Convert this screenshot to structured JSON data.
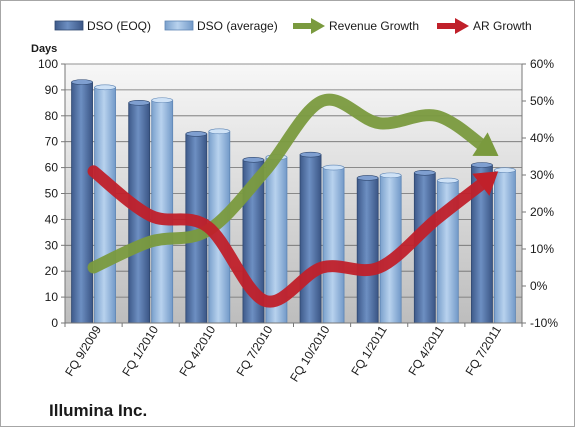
{
  "chart_data": {
    "type": "bar",
    "title": "",
    "subtitle": "Illumina Inc.",
    "ylabel": "Days",
    "ylim": [
      0,
      100
    ],
    "y_ticks": [
      "0",
      "10",
      "20",
      "30",
      "40",
      "50",
      "60",
      "70",
      "80",
      "90",
      "100"
    ],
    "y2lim": [
      -10,
      60
    ],
    "y2_ticks": [
      "-10%",
      "0%",
      "10%",
      "20%",
      "30%",
      "40%",
      "50%",
      "60%"
    ],
    "categories": [
      "FQ 9/2009",
      "FQ 1/2010",
      "FQ 4/2010",
      "FQ 7/2010",
      "FQ 10/2010",
      "FQ 1/2011",
      "FQ 4/2011",
      "FQ 7/2011"
    ],
    "series": [
      {
        "name": "DSO (EOQ)",
        "type": "bar",
        "axis": "left",
        "color": "#4f6fa3",
        "values": [
          93,
          85,
          73,
          63,
          65,
          56,
          58,
          61
        ]
      },
      {
        "name": "DSO (average)",
        "type": "bar",
        "axis": "left",
        "color": "#8fb4dc",
        "values": [
          91,
          86,
          74,
          64,
          60,
          57,
          55,
          59
        ]
      },
      {
        "name": "Revenue Growth",
        "type": "line",
        "axis": "right",
        "color": "#7a9a3e",
        "values": [
          5,
          12,
          15,
          31,
          50,
          44,
          46,
          36
        ]
      },
      {
        "name": "AR Growth",
        "type": "line",
        "axis": "right",
        "color": "#c0202a",
        "values": [
          31,
          19,
          16,
          -4,
          5,
          5,
          18,
          30
        ]
      }
    ],
    "grid": true,
    "legend": "top"
  }
}
